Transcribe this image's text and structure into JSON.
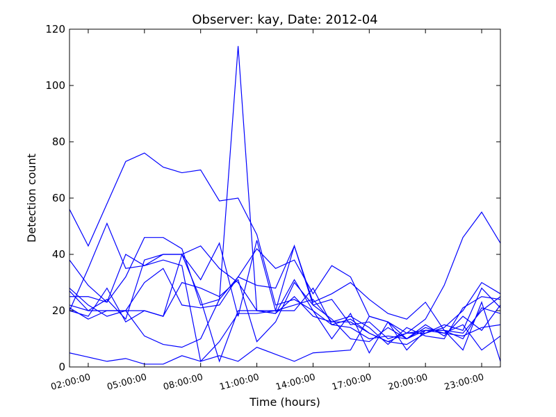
{
  "chart_data": {
    "type": "line",
    "title": "Observer: kay, Date: 2012-04",
    "xlabel": "Time (hours)",
    "ylabel": "Detection count",
    "x": [
      1,
      2,
      3,
      4,
      5,
      6,
      7,
      8,
      9,
      10,
      11,
      12,
      13,
      14,
      15,
      16,
      17,
      18,
      19,
      20,
      21,
      22,
      23,
      24
    ],
    "xlim": [
      1,
      24
    ],
    "xticks": [
      {
        "value": 2,
        "label": "02:00:00"
      },
      {
        "value": 5,
        "label": "05:00:00"
      },
      {
        "value": 8,
        "label": "08:00:00"
      },
      {
        "value": 11,
        "label": "11:00:00"
      },
      {
        "value": 14,
        "label": "14:00:00"
      },
      {
        "value": 17,
        "label": "17:00:00"
      },
      {
        "value": 20,
        "label": "20:00:00"
      },
      {
        "value": 23,
        "label": "23:00:00"
      }
    ],
    "ylim": [
      0,
      120
    ],
    "yticks": [
      0,
      20,
      40,
      60,
      80,
      100,
      120
    ],
    "grid": false,
    "series": [
      {
        "color": "#0000ff",
        "values": [
          56,
          43,
          58,
          73,
          76,
          71,
          69,
          70,
          59,
          60,
          47,
          22,
          24,
          20,
          15,
          17,
          12,
          9,
          12,
          17,
          29,
          46,
          55,
          44
        ]
      },
      {
        "color": "#0000ff",
        "values": [
          28,
          22,
          18,
          20,
          11,
          8,
          7,
          10,
          24,
          114,
          20,
          19,
          31,
          20,
          10,
          19,
          5,
          16,
          6,
          13,
          13,
          6,
          23,
          2
        ]
      },
      {
        "color": "#0000ff",
        "values": [
          5,
          3.5,
          2,
          3,
          1,
          1,
          4,
          2,
          4,
          2,
          7,
          4.5,
          2,
          5,
          5.5,
          6,
          18,
          16,
          10,
          13,
          12,
          11,
          14,
          15
        ]
      },
      {
        "color": "#0000ff",
        "values": [
          38,
          29,
          23,
          40,
          36,
          40,
          40,
          31,
          44,
          18,
          45,
          20,
          43,
          22,
          24,
          15,
          16,
          10,
          12,
          13,
          13,
          10,
          21,
          19
        ]
      },
      {
        "color": "#0000ff",
        "values": [
          20,
          35,
          51,
          35,
          36,
          38,
          36,
          2,
          9,
          19,
          19,
          20,
          22,
          24,
          16,
          16,
          12,
          9,
          8,
          12,
          15,
          13,
          28,
          21
        ]
      },
      {
        "color": "#0000ff",
        "values": [
          25,
          25,
          23,
          32,
          46,
          46,
          42,
          22,
          24,
          32,
          29,
          28,
          43,
          23,
          26,
          30,
          24,
          19,
          17,
          23,
          13,
          12,
          20,
          25
        ]
      },
      {
        "color": "#0000ff",
        "values": [
          21,
          17,
          20,
          20,
          30,
          35,
          22,
          21,
          22,
          32,
          42,
          35,
          38,
          26,
          36,
          32,
          18,
          16,
          12,
          12,
          14,
          20,
          30,
          26
        ]
      },
      {
        "color": "#0000ff",
        "values": [
          22,
          20,
          20,
          20,
          20,
          18,
          30,
          28,
          25,
          31,
          9,
          16,
          30,
          22,
          17,
          10,
          9,
          14,
          10,
          14,
          12,
          15,
          6,
          11
        ]
      },
      {
        "color": "#0000ff",
        "values": [
          27,
          20,
          24,
          17,
          38,
          40,
          40,
          43,
          35,
          30,
          20,
          20,
          20,
          28,
          15,
          14,
          10,
          11,
          10,
          15,
          11,
          18,
          13,
          22
        ]
      },
      {
        "color": "#0000ff",
        "values": [
          20,
          18,
          28,
          16,
          20,
          18,
          40,
          24,
          2,
          20,
          20,
          19,
          25,
          18,
          16,
          18,
          14,
          8,
          14,
          11,
          10,
          21,
          25,
          24
        ]
      }
    ]
  }
}
